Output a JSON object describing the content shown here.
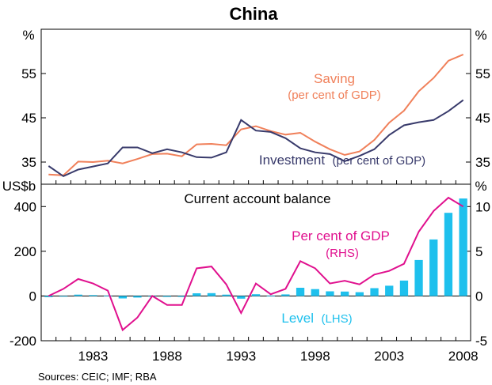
{
  "chart_data": {
    "title": "China",
    "type": "line",
    "years": [
      1980,
      1981,
      1982,
      1983,
      1984,
      1985,
      1986,
      1987,
      1988,
      1989,
      1990,
      1991,
      1992,
      1993,
      1994,
      1995,
      1996,
      1997,
      1998,
      1999,
      2000,
      2001,
      2002,
      2003,
      2004,
      2005,
      2006,
      2007,
      2008
    ],
    "x_ticks": [
      "1983",
      "1988",
      "1993",
      "1998",
      "2003",
      "2008"
    ],
    "top_panel": {
      "ylabel_left": "%",
      "ylabel_right": "%",
      "ylim": [
        30,
        65
      ],
      "y_ticks": [
        "35",
        "45",
        "55"
      ],
      "series": [
        {
          "name": "Saving",
          "label_main": "Saving",
          "label_sub": "(per cent of GDP)",
          "color": "#f0805a",
          "values": [
            32.2,
            32.0,
            35.1,
            35.0,
            35.3,
            34.7,
            35.7,
            36.8,
            36.9,
            36.3,
            39.0,
            39.1,
            38.8,
            42.4,
            43.1,
            42.0,
            41.2,
            41.6,
            39.6,
            37.9,
            36.6,
            37.4,
            40.0,
            43.9,
            46.6,
            51.0,
            54.0,
            57.9,
            59.3
          ]
        },
        {
          "name": "Investment",
          "label_main": "Investment",
          "label_sub": "(per cent of GDP)",
          "color": "#383a6b",
          "values": [
            34.1,
            31.8,
            33.3,
            34.0,
            34.7,
            38.3,
            38.3,
            37.0,
            37.9,
            37.2,
            36.1,
            36.0,
            37.2,
            44.5,
            42.1,
            41.8,
            40.4,
            38.1,
            37.2,
            36.8,
            35.2,
            36.4,
            37.9,
            41.1,
            43.3,
            44.0,
            44.5,
            46.5,
            49.0
          ]
        }
      ]
    },
    "bottom_panel": {
      "title": "Current account balance",
      "ylabel_left": "US$b",
      "ylabel_right": "%",
      "ylim_left": [
        -200,
        500
      ],
      "ylim_right": [
        -5,
        12.5
      ],
      "y_ticks_left": [
        "400",
        "200",
        "0",
        "-200"
      ],
      "y_ticks_right": [
        "10",
        "5",
        "0",
        "-5"
      ],
      "bars": {
        "name": "Level",
        "label_main": "Level",
        "label_sub": "(LHS)",
        "color": "#1ec0ed",
        "values": [
          -5,
          -2,
          6,
          4,
          2,
          -11,
          -7,
          0,
          -4,
          -4,
          12,
          13,
          6,
          -12,
          8,
          2,
          7,
          37,
          31,
          21,
          20,
          17,
          35,
          46,
          69,
          161,
          253,
          372,
          436
        ]
      },
      "line": {
        "name": "Per cent of GDP",
        "label_main": "Per cent of GDP",
        "label_sub": "(RHS)",
        "color": "#e0108e",
        "values": [
          0.0,
          0.8,
          1.9,
          1.4,
          0.6,
          -3.8,
          -2.4,
          0.0,
          -1.0,
          -1.0,
          3.1,
          3.3,
          1.3,
          -1.9,
          1.4,
          0.2,
          0.8,
          3.9,
          3.1,
          1.4,
          1.7,
          1.3,
          2.4,
          2.8,
          3.6,
          7.2,
          9.5,
          11.0,
          10.0
        ]
      }
    },
    "source": "Sources: CEIC; IMF; RBA"
  }
}
